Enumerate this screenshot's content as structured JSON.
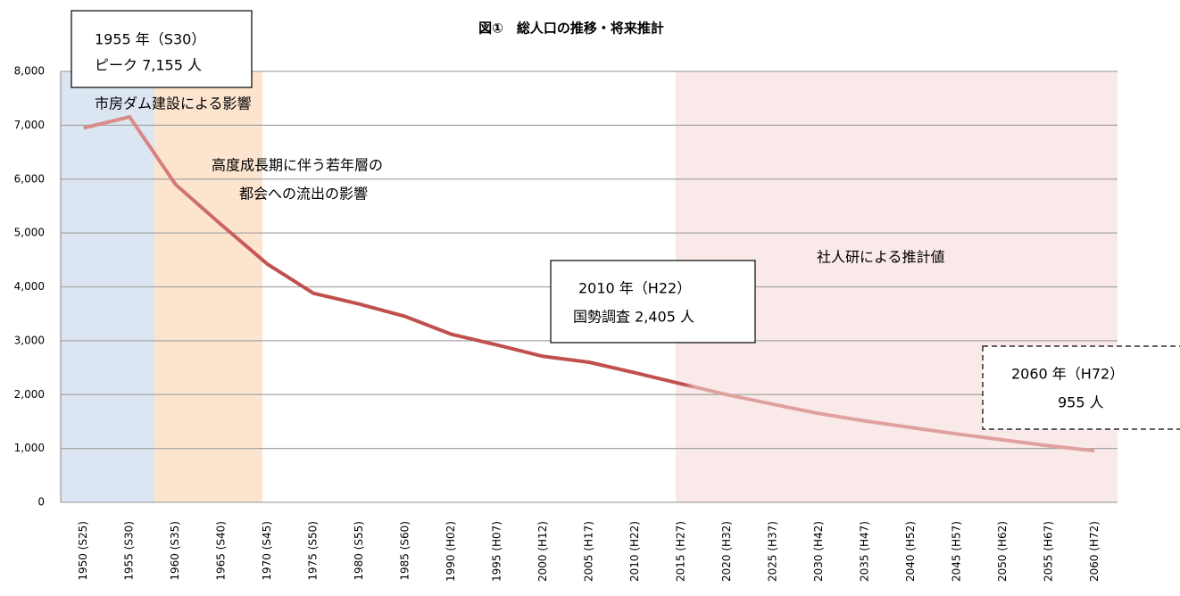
{
  "chart_data": {
    "type": "line",
    "title": "図①　総人口の推移・将来推計",
    "categories": [
      "1950 (S25)",
      "1955 (S30)",
      "1960 (S35)",
      "1965 (S40)",
      "1970 (S45)",
      "1975 (S50)",
      "1980 (S55)",
      "1985 (S60)",
      "1990 (H02)",
      "1995 (H07)",
      "2000 (H12)",
      "2005 (H17)",
      "2010 (H22)",
      "2015 (H27)",
      "2020 (H32)",
      "2025 (H37)",
      "2030 (H42)",
      "2035 (H47)",
      "2040 (H52)",
      "2045 (H57)",
      "2050 (H62)",
      "2055 (H67)",
      "2060 (H72)"
    ],
    "values": [
      6950,
      7155,
      5900,
      5150,
      4420,
      3880,
      3680,
      3450,
      3120,
      2920,
      2710,
      2600,
      2405,
      2200,
      2000,
      1820,
      1650,
      1510,
      1390,
      1270,
      1160,
      1050,
      955
    ],
    "color": "#c0504d",
    "ylim": [
      0,
      8000
    ],
    "yticks": [
      0,
      {
        "value": 1000,
        "label": "1,000"
      },
      {
        "value": 2000,
        "label": "2,000"
      },
      {
        "value": 3000,
        "label": "3,000"
      },
      {
        "value": 4000,
        "label": "4,000"
      },
      {
        "value": 5000,
        "label": "5,000"
      },
      {
        "value": 6000,
        "label": "6,000"
      },
      {
        "value": 7000,
        "label": "7,000"
      },
      {
        "value": 8000,
        "label": "8,000"
      }
    ],
    "grid": true,
    "annotations": [
      "1955 年（S30）",
      "ピーク 7,155 人",
      "市房ダム建設による影響",
      "高度成長期に伴う若年層の",
      "都会への流出の影響",
      "社人研による推計値",
      "2010 年（H22）",
      "国勢調査 2,405 人",
      "2060 年（H72）",
      "955 人"
    ]
  }
}
